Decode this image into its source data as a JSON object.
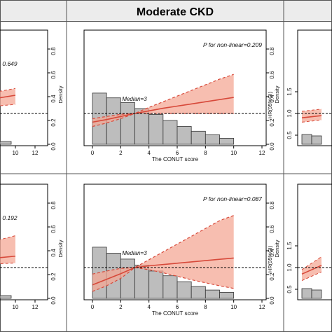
{
  "header": {
    "title": "Moderate CKD"
  },
  "chart_data": [
    {
      "type": "line",
      "panel": "top-left (partially visible)",
      "p_text": "0.649",
      "x_ticks": [
        "10",
        "12"
      ],
      "y_ticks": [
        "0.8",
        "0.6",
        "0.4",
        "0.2",
        "0.0"
      ],
      "density_label": "Density",
      "series": [
        {
          "x": [
            0,
            10
          ],
          "hr": [
            1.05,
            1.4
          ],
          "lower": [
            1.0,
            1.2
          ],
          "upper": [
            1.15,
            1.55
          ]
        }
      ]
    },
    {
      "type": "line",
      "panel": "top-middle",
      "title": "Moderate CKD",
      "p_text": "P for non-linear=0.209",
      "median_text": "Median=3",
      "xlabel": "The CONUT score",
      "ylabel": "HR(95%CI)",
      "density_label": "Density",
      "x_ticks": [
        "0",
        "2",
        "4",
        "6",
        "8",
        "10",
        "12"
      ],
      "xlim": [
        0,
        12
      ],
      "y_ticks_right": [
        "0.0",
        "0.2",
        "0.4",
        "0.6",
        "0.8"
      ],
      "reference_hr": 1.0,
      "hr_curve": {
        "x": [
          0,
          1,
          2,
          3,
          4,
          5,
          6,
          7,
          8,
          9,
          10
        ],
        "hr": [
          0.8,
          0.86,
          0.93,
          1.0,
          1.06,
          1.12,
          1.17,
          1.22,
          1.27,
          1.32,
          1.37
        ]
      },
      "ci_upper": {
        "x": [
          0,
          1,
          2,
          3,
          4,
          5,
          6,
          7,
          8,
          9,
          10
        ],
        "values": [
          0.88,
          0.93,
          0.98,
          1.0,
          1.14,
          1.27,
          1.4,
          1.53,
          1.66,
          1.79,
          1.9
        ]
      },
      "ci_lower": {
        "x": [
          0,
          1,
          2,
          3,
          4,
          5,
          6,
          7,
          8,
          9,
          10
        ],
        "values": [
          0.7,
          0.78,
          0.88,
          1.0,
          1.0,
          1.0,
          1.0,
          1.0,
          1.0,
          1.0,
          1.0
        ]
      },
      "density": {
        "bins": [
          [
            0,
            1
          ],
          [
            1,
            2
          ],
          [
            2,
            3
          ],
          [
            3,
            4
          ],
          [
            4,
            5
          ],
          [
            5,
            6
          ],
          [
            6,
            7
          ],
          [
            7,
            8
          ],
          [
            8,
            9
          ],
          [
            9,
            10
          ]
        ],
        "values": [
          0.43,
          0.39,
          0.35,
          0.3,
          0.25,
          0.2,
          0.15,
          0.11,
          0.08,
          0.05
        ]
      }
    },
    {
      "type": "line",
      "panel": "top-right (partially visible)",
      "y_ticks": [
        "1.5",
        "1.0",
        "0.5"
      ],
      "series": [
        {
          "x": [
            0,
            2
          ],
          "hr": [
            0.9,
            0.95
          ],
          "lower": [
            0.8,
            0.85
          ],
          "upper": [
            1.05,
            1.1
          ]
        }
      ]
    },
    {
      "type": "line",
      "panel": "bottom-left (partially visible)",
      "p_text": "0.192",
      "x_ticks": [
        "10",
        "12"
      ],
      "y_ticks": [
        "0.8",
        "0.6",
        "0.4",
        "0.2",
        "0.0"
      ],
      "density_label": "Density",
      "series": [
        {
          "x": [
            0,
            10
          ],
          "hr": [
            1.05,
            1.25
          ],
          "lower": [
            1.0,
            1.1
          ],
          "upper": [
            1.15,
            1.7
          ]
        }
      ]
    },
    {
      "type": "line",
      "panel": "bottom-middle",
      "p_text": "P for non-linear=0.087",
      "median_text": "Median=3",
      "xlabel": "The CONUT score",
      "ylabel": "HR(95%CI)",
      "density_label": "Density",
      "x_ticks": [
        "0",
        "2",
        "4",
        "6",
        "8",
        "10",
        "12"
      ],
      "xlim": [
        0,
        12
      ],
      "y_ticks_right": [
        "0.0",
        "0.2",
        "0.4",
        "0.6",
        "0.8"
      ],
      "reference_hr": 1.0,
      "hr_curve": {
        "x": [
          0,
          1,
          2,
          3,
          4,
          5,
          6,
          7,
          8,
          9,
          10
        ],
        "hr": [
          0.6,
          0.73,
          0.86,
          1.0,
          1.04,
          1.07,
          1.1,
          1.13,
          1.16,
          1.19,
          1.22
        ]
      },
      "ci_upper": {
        "x": [
          0,
          1,
          2,
          3,
          4,
          5,
          6,
          7,
          8,
          9,
          10
        ],
        "values": [
          0.85,
          0.92,
          0.98,
          1.0,
          1.18,
          1.36,
          1.54,
          1.72,
          1.9,
          2.08,
          2.2
        ]
      },
      "ci_lower": {
        "x": [
          0,
          1,
          2,
          3,
          4,
          5,
          6,
          7,
          8,
          9,
          10
        ],
        "values": [
          0.45,
          0.58,
          0.75,
          1.0,
          0.95,
          0.88,
          0.8,
          0.72,
          0.65,
          0.58,
          0.52
        ]
      },
      "density": {
        "bins": [
          [
            0,
            1
          ],
          [
            1,
            2
          ],
          [
            2,
            3
          ],
          [
            3,
            4
          ],
          [
            4,
            5
          ],
          [
            5,
            6
          ],
          [
            6,
            7
          ],
          [
            7,
            8
          ],
          [
            8,
            9
          ],
          [
            9,
            10
          ]
        ],
        "values": [
          0.43,
          0.38,
          0.33,
          0.28,
          0.23,
          0.19,
          0.14,
          0.1,
          0.07,
          0.05
        ]
      }
    },
    {
      "type": "line",
      "panel": "bottom-right (partially visible)",
      "y_ticks": [
        "1.5",
        "1.0",
        "0.5"
      ],
      "series": [
        {
          "x": [
            0,
            2
          ],
          "hr": [
            0.85,
            1.05
          ],
          "lower": [
            0.7,
            0.9
          ],
          "upper": [
            0.95,
            1.25
          ]
        }
      ]
    }
  ],
  "colors": {
    "curve": "#d7493a",
    "band": "#f4a896",
    "bar_fill": "#bdbdbd",
    "bar_stroke": "#333333",
    "header_bg": "#ececec",
    "reference": "#000000"
  }
}
